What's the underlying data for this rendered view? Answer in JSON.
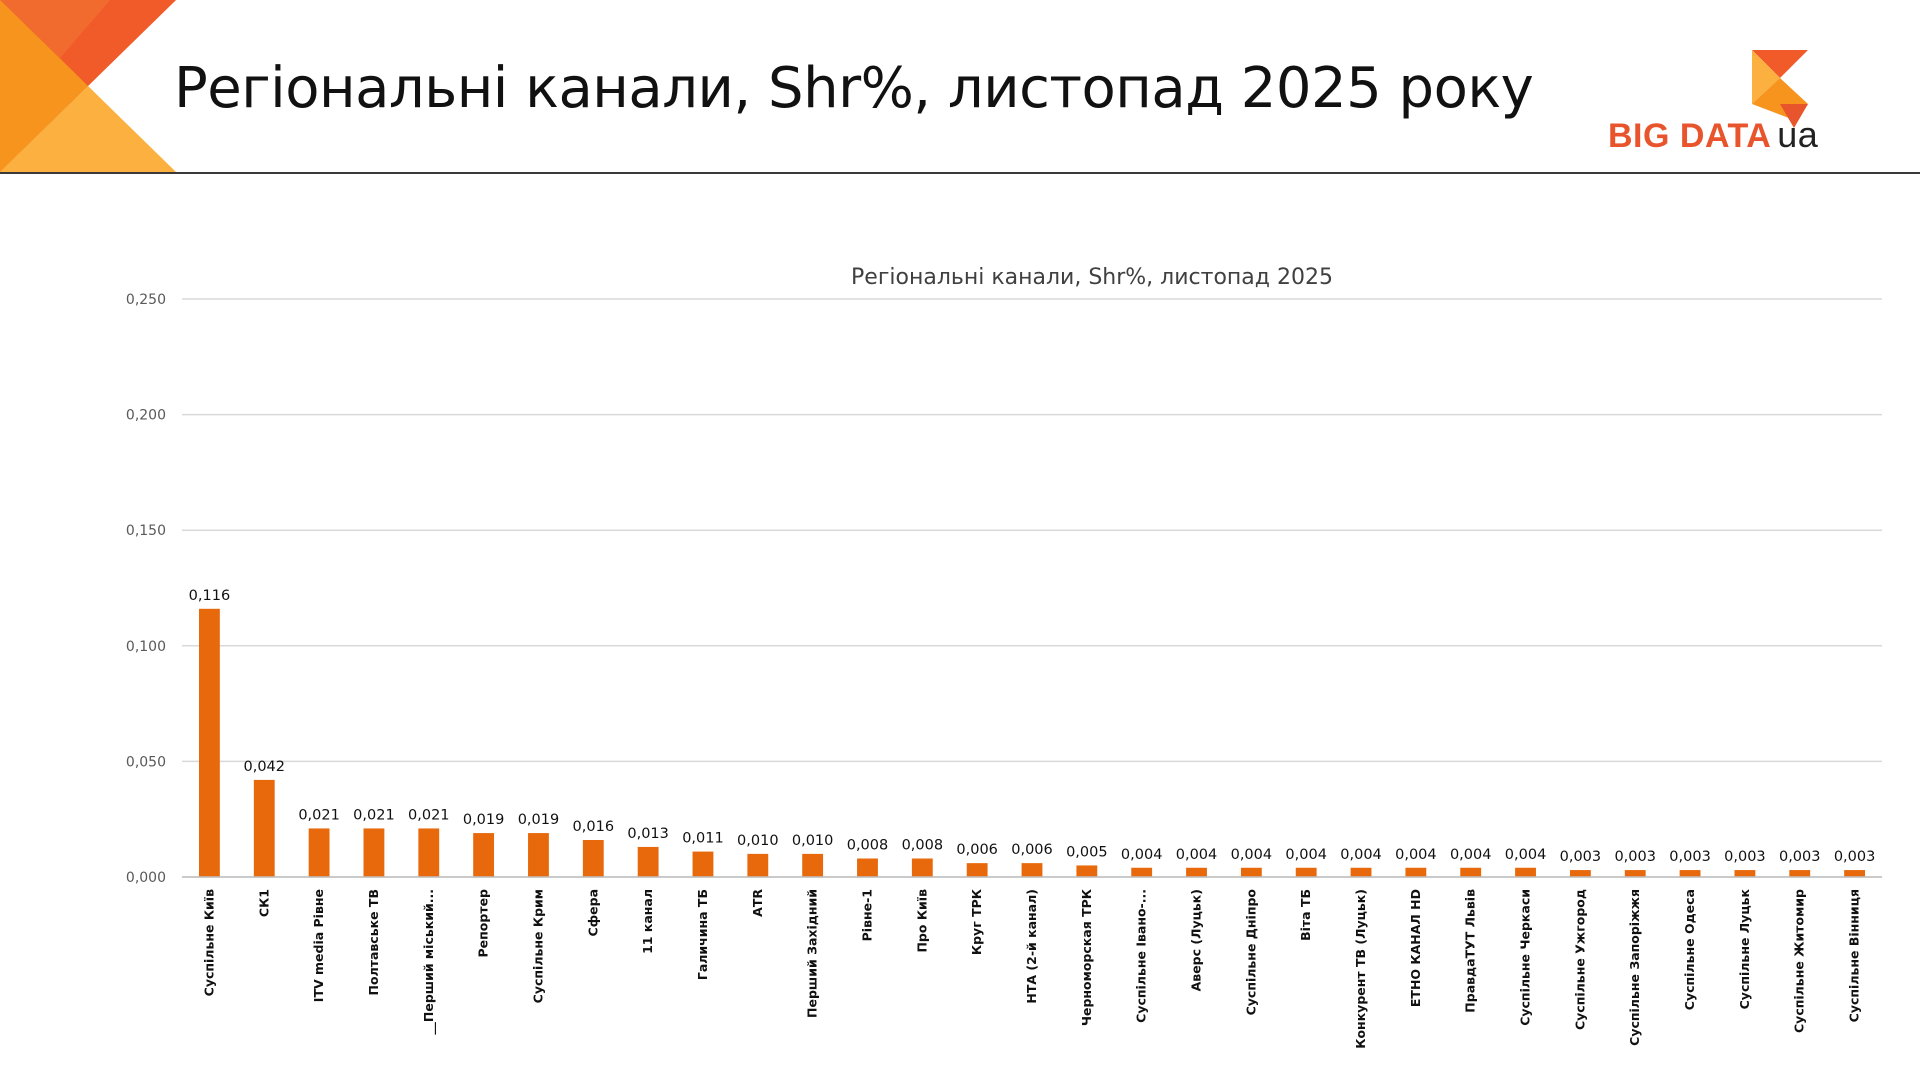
{
  "header": {
    "title": "Регіональні канали, Shr%, листопад 2025 року",
    "logo_text": "BIG DATA",
    "logo_suffix": "ua"
  },
  "colors": {
    "bar": "#E8690C",
    "gridline": "#D9D9D9",
    "deco_dark": "#F26B2E",
    "deco_light": "#FBB040",
    "logo_orange": "#E8552D"
  },
  "chart_data": {
    "type": "bar",
    "title": "Регіональні канали, Shr%, листопад 2025",
    "xlabel": "",
    "ylabel": "",
    "ylim": [
      0,
      0.25
    ],
    "yticks": [
      "0,000",
      "0,050",
      "0,100",
      "0,150",
      "0,200",
      "0,250"
    ],
    "grid": true,
    "legend": "none",
    "categories": [
      "Суспільне Київ",
      "СК1",
      "ITV media Рівне",
      "Полтавське ТВ",
      "__Перший міський...",
      "Репортер",
      "Суспільне Крим",
      "Сфера",
      "11 канал",
      "Галичина ТБ",
      "АТR",
      "Перший Західний",
      "Рівне-1",
      "Про Київ",
      "Круг ТРК",
      "НТА (2-й канал)",
      "Черноморская ТРК",
      "Суспільне Івано-...",
      "Аверс (Луцьк)",
      "Суспільне Дніпро",
      "Віта ТБ",
      "Конкурент ТВ (Луцьк)",
      "ЕТНО КАНАЛ HD",
      "ПравдаТУТ Львів",
      "Суспільне Черкаси",
      "Суспільне Ужгород",
      "Суспільне Запоріжжя",
      "Суспільне Одеса",
      "Суспільне Луцьк",
      "Суспільне Житомир",
      "Суспільне Вінниця"
    ],
    "values": [
      0.116,
      0.042,
      0.021,
      0.021,
      0.021,
      0.019,
      0.019,
      0.016,
      0.013,
      0.011,
      0.01,
      0.01,
      0.008,
      0.008,
      0.006,
      0.006,
      0.005,
      0.004,
      0.004,
      0.004,
      0.004,
      0.004,
      0.004,
      0.004,
      0.004,
      0.003,
      0.003,
      0.003,
      0.003,
      0.003,
      0.003
    ],
    "value_labels": [
      "0,116",
      "0,042",
      "0,021",
      "0,021",
      "0,021",
      "0,019",
      "0,019",
      "0,016",
      "0,013",
      "0,011",
      "0,010",
      "0,010",
      "0,008",
      "0,008",
      "0,006",
      "0,006",
      "0,005",
      "0,004",
      "0,004",
      "0,004",
      "0,004",
      "0,004",
      "0,004",
      "0,004",
      "0,004",
      "0,003",
      "0,003",
      "0,003",
      "0,003",
      "0,003",
      "0,003"
    ]
  }
}
